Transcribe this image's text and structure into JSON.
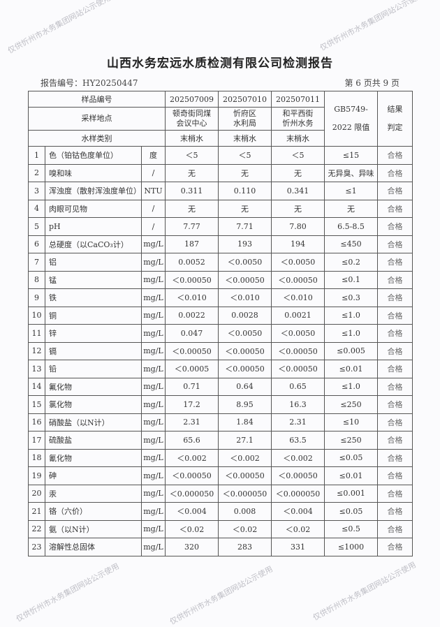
{
  "title": "山西水务宏远水质检测有限公司检测报告",
  "report_no": "报告编号：HY20250447",
  "page_no": "第 6 页共 9 页",
  "watermark": "仅供忻州市水务集团网站公示使用",
  "header": {
    "sample_no_label": "样品编号",
    "location_label": "采样地点",
    "type_label": "水样类别",
    "samples": [
      {
        "no": "202507009",
        "location1": "顿奇街同煤",
        "location2": "会议中心",
        "type": "末梢水"
      },
      {
        "no": "202507010",
        "location1": "忻府区",
        "location2": "水利局",
        "type": "末梢水"
      },
      {
        "no": "202507011",
        "location1": "和平西街",
        "location2": "忻州水务",
        "type": "末梢水"
      }
    ],
    "limit_label1": "GB5749-",
    "limit_label2": "2022 限值",
    "result_label1": "结果",
    "result_label2": "判定"
  },
  "rows": [
    {
      "n": "1",
      "item": "色（铂钴色度单位）",
      "unit": "度",
      "v": [
        "＜5",
        "＜5",
        "＜5"
      ],
      "limit": "≤15",
      "result": "合格"
    },
    {
      "n": "2",
      "item": "嗅和味",
      "unit": "/",
      "v": [
        "无",
        "无",
        "无"
      ],
      "limit": "无异臭、异味",
      "result": "合格"
    },
    {
      "n": "3",
      "item": "浑浊度（散射浑浊度单位）",
      "unit": "NTU",
      "v": [
        "0.311",
        "0.110",
        "0.341"
      ],
      "limit": "≤1",
      "result": "合格"
    },
    {
      "n": "4",
      "item": "肉眼可见物",
      "unit": "/",
      "v": [
        "无",
        "无",
        "无"
      ],
      "limit": "无",
      "result": "合格"
    },
    {
      "n": "5",
      "item": "pH",
      "unit": "/",
      "v": [
        "7.77",
        "7.71",
        "7.80"
      ],
      "limit": "6.5-8.5",
      "result": "合格"
    },
    {
      "n": "6",
      "item": "总硬度（以CaCO₃计）",
      "unit": "mg/L",
      "v": [
        "187",
        "193",
        "194"
      ],
      "limit": "≤450",
      "result": "合格"
    },
    {
      "n": "7",
      "item": "铝",
      "unit": "mg/L",
      "v": [
        "0.0052",
        "＜0.0050",
        "＜0.0050"
      ],
      "limit": "≤0.2",
      "result": "合格"
    },
    {
      "n": "8",
      "item": "锰",
      "unit": "mg/L",
      "v": [
        "＜0.00050",
        "＜0.00050",
        "＜0.00050"
      ],
      "limit": "≤0.1",
      "result": "合格"
    },
    {
      "n": "9",
      "item": "铁",
      "unit": "mg/L",
      "v": [
        "＜0.010",
        "＜0.010",
        "＜0.010"
      ],
      "limit": "≤0.3",
      "result": "合格"
    },
    {
      "n": "10",
      "item": "铜",
      "unit": "mg/L",
      "v": [
        "0.0022",
        "0.0028",
        "0.0021"
      ],
      "limit": "≤1.0",
      "result": "合格"
    },
    {
      "n": "11",
      "item": "锌",
      "unit": "mg/L",
      "v": [
        "0.047",
        "＜0.0050",
        "＜0.0050"
      ],
      "limit": "≤1.0",
      "result": "合格"
    },
    {
      "n": "12",
      "item": "镉",
      "unit": "mg/L",
      "v": [
        "＜0.00050",
        "＜0.00050",
        "＜0.00050"
      ],
      "limit": "≤0.005",
      "result": "合格"
    },
    {
      "n": "13",
      "item": "铅",
      "unit": "mg/L",
      "v": [
        "＜0.0005",
        "＜0.00050",
        "＜0.00050"
      ],
      "limit": "≤0.01",
      "result": "合格"
    },
    {
      "n": "14",
      "item": "氟化物",
      "unit": "mg/L",
      "v": [
        "0.71",
        "0.64",
        "0.65"
      ],
      "limit": "≤1.0",
      "result": "合格"
    },
    {
      "n": "15",
      "item": "氯化物",
      "unit": "mg/L",
      "v": [
        "17.2",
        "8.95",
        "16.3"
      ],
      "limit": "≤250",
      "result": "合格"
    },
    {
      "n": "16",
      "item": "硝酸盐（以N计）",
      "unit": "mg/L",
      "v": [
        "2.31",
        "1.84",
        "2.31"
      ],
      "limit": "≤10",
      "result": "合格"
    },
    {
      "n": "17",
      "item": "硫酸盐",
      "unit": "mg/L",
      "v": [
        "65.6",
        "27.1",
        "63.5"
      ],
      "limit": "≤250",
      "result": "合格"
    },
    {
      "n": "18",
      "item": "氰化物",
      "unit": "mg/L",
      "v": [
        "＜0.002",
        "＜0.002",
        "＜0.002"
      ],
      "limit": "≤0.05",
      "result": "合格"
    },
    {
      "n": "19",
      "item": "砷",
      "unit": "mg/L",
      "v": [
        "＜0.00050",
        "＜0.00050",
        "＜0.00050"
      ],
      "limit": "≤0.01",
      "result": "合格"
    },
    {
      "n": "20",
      "item": "汞",
      "unit": "mg/L",
      "v": [
        "＜0.000050",
        "＜0.000050",
        "＜0.000050"
      ],
      "limit": "≤0.001",
      "result": "合格"
    },
    {
      "n": "21",
      "item": "铬（六价）",
      "unit": "mg/L",
      "v": [
        "＜0.004",
        "0.008",
        "＜0.004"
      ],
      "limit": "≤0.05",
      "result": "合格"
    },
    {
      "n": "22",
      "item": "氨（以N计）",
      "unit": "mg/L",
      "v": [
        "＜0.02",
        "＜0.02",
        "＜0.02"
      ],
      "limit": "≤0.5",
      "result": "合格"
    },
    {
      "n": "23",
      "item": "溶解性总固体",
      "unit": "mg/L",
      "v": [
        "320",
        "283",
        "331"
      ],
      "limit": "≤1000",
      "result": "合格"
    }
  ]
}
